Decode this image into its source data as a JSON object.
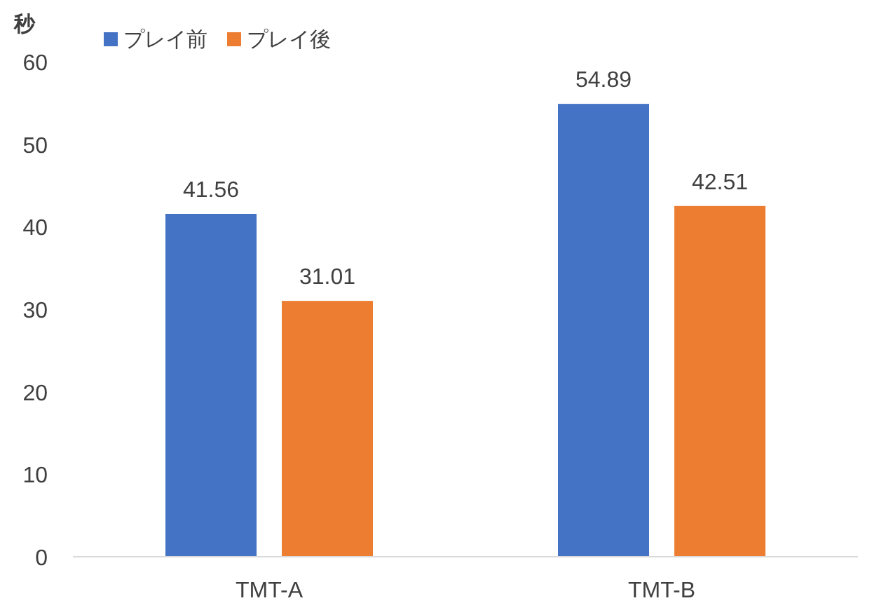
{
  "chart_data": {
    "type": "bar",
    "ylabel": "秒",
    "categories": [
      "TMT-A",
      "TMT-B"
    ],
    "series": [
      {
        "name": "プレイ前",
        "color": "#4472c4",
        "values": [
          41.56,
          54.89
        ]
      },
      {
        "name": "プレイ後",
        "color": "#ed7d31",
        "values": [
          31.01,
          42.51
        ]
      }
    ],
    "ylim": [
      0,
      60
    ],
    "yticks": [
      0,
      10,
      20,
      30,
      40,
      50,
      60
    ],
    "grid": false,
    "legend": "top left",
    "data_labels": true
  }
}
